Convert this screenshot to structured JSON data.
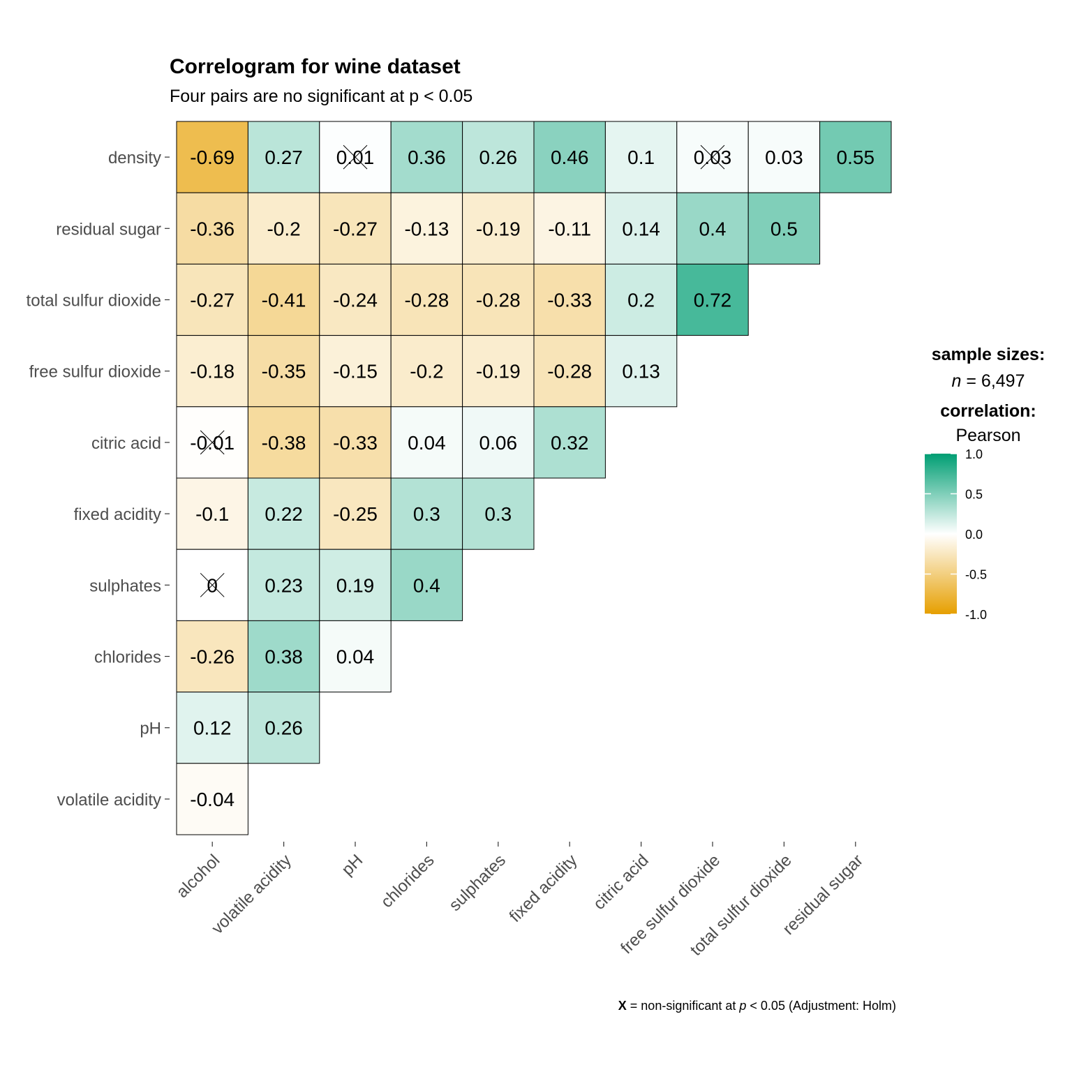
{
  "chart_data": {
    "type": "heatmap",
    "title": "Correlogram for wine dataset",
    "subtitle": "Four pairs are no significant at p < 0.05",
    "x_categories": [
      "alcohol",
      "volatile acidity",
      "pH",
      "chlorides",
      "sulphates",
      "fixed acidity",
      "citric acid",
      "free sulfur dioxide",
      "total sulfur dioxide",
      "residual sugar"
    ],
    "y_categories": [
      "density",
      "residual sugar",
      "total sulfur dioxide",
      "free sulfur dioxide",
      "citric acid",
      "fixed acidity",
      "sulphates",
      "chlorides",
      "pH",
      "volatile acidity"
    ],
    "values": [
      [
        -0.69,
        0.27,
        0.01,
        0.36,
        0.26,
        0.46,
        0.1,
        0.03,
        0.03,
        0.55
      ],
      [
        -0.36,
        -0.2,
        -0.27,
        -0.13,
        -0.19,
        -0.11,
        0.14,
        0.4,
        0.5
      ],
      [
        -0.27,
        -0.41,
        -0.24,
        -0.28,
        -0.28,
        -0.33,
        0.2,
        0.72
      ],
      [
        -0.18,
        -0.35,
        -0.15,
        -0.2,
        -0.19,
        -0.28,
        0.13
      ],
      [
        -0.01,
        -0.38,
        -0.33,
        0.04,
        0.06,
        0.32
      ],
      [
        -0.1,
        0.22,
        -0.25,
        0.3,
        0.3
      ],
      [
        0,
        0.23,
        0.19,
        0.4
      ],
      [
        -0.26,
        0.38,
        0.04
      ],
      [
        0.12,
        0.26
      ],
      [
        -0.04
      ]
    ],
    "labels": [
      [
        "-0.69",
        "0.27",
        "0.01",
        "0.36",
        "0.26",
        "0.46",
        "0.1",
        "0.03",
        "0.03",
        "0.55"
      ],
      [
        "-0.36",
        "-0.2",
        "-0.27",
        "-0.13",
        "-0.19",
        "-0.11",
        "0.14",
        "0.4",
        "0.5"
      ],
      [
        "-0.27",
        "-0.41",
        "-0.24",
        "-0.28",
        "-0.28",
        "-0.33",
        "0.2",
        "0.72"
      ],
      [
        "-0.18",
        "-0.35",
        "-0.15",
        "-0.2",
        "-0.19",
        "-0.28",
        "0.13"
      ],
      [
        "-0.01",
        "-0.38",
        "-0.33",
        "0.04",
        "0.06",
        "0.32"
      ],
      [
        "-0.1",
        "0.22",
        "-0.25",
        "0.3",
        "0.3"
      ],
      [
        "0",
        "0.23",
        "0.19",
        "0.4"
      ],
      [
        "-0.26",
        "0.38",
        "0.04"
      ],
      [
        "0.12",
        "0.26"
      ],
      [
        "-0.04"
      ]
    ],
    "non_significant": [
      [
        0,
        2
      ],
      [
        0,
        7
      ],
      [
        4,
        0
      ],
      [
        6,
        0
      ]
    ],
    "color_scale": {
      "low": "#E69F00",
      "mid": "#FFFFFF",
      "high": "#009E73",
      "limits": [
        -1.0,
        1.0
      ],
      "ticks": [
        "1.0",
        "0.5",
        "0.0",
        "-0.5",
        "-1.0"
      ]
    },
    "legend": {
      "position": "right",
      "sample_sizes_heading": "sample sizes:",
      "sample_n_symbol": "n",
      "sample_n_rest": " = 6,497",
      "correlation_heading": "correlation:",
      "correlation_method": "Pearson"
    },
    "caption": {
      "marker": "X",
      "text_before_p": " = non-significant at ",
      "p_symbol": "p",
      "text_after_p": " < 0.05 (Adjustment: Holm)"
    }
  }
}
